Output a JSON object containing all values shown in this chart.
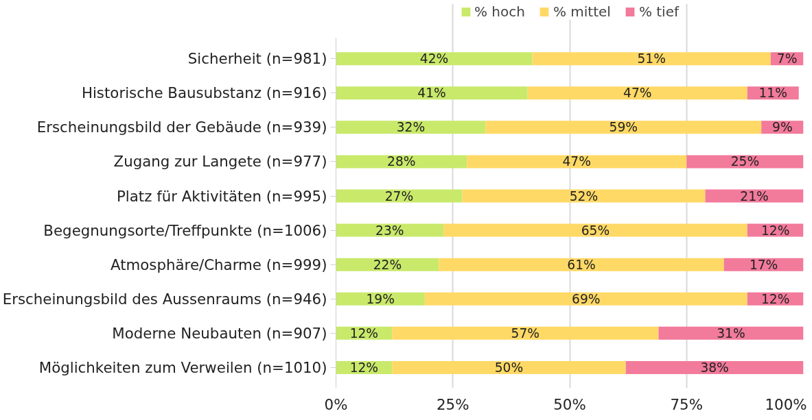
{
  "chart_data": {
    "type": "bar",
    "orientation": "horizontal",
    "stacked": true,
    "categories": [
      "Sicherheit (n=981)",
      "Historische Bausubstanz (n=916)",
      "Erscheinungsbild der Gebäude (n=939)",
      "Zugang zur Langete (n=977)",
      "Platz für Aktivitäten (n=995)",
      "Begegnungsorte/Treffpunkte (n=1006)",
      "Atmosphäre/Charme (n=999)",
      "Erscheinungsbild des Aussenraums (n=946)",
      "Moderne Neubauten (n=907)",
      "Möglichkeiten zum Verweilen (n=1010)"
    ],
    "series": [
      {
        "name": "% hoch",
        "color": "#c9e96b",
        "values": [
          42,
          41,
          32,
          28,
          27,
          23,
          22,
          19,
          12,
          12
        ],
        "value_labels": [
          "42%",
          "41%",
          "32%",
          "28%",
          "27%",
          "23%",
          "22%",
          "19%",
          "12%",
          "12%"
        ]
      },
      {
        "name": "% mittel",
        "color": "#ffd966",
        "values": [
          51,
          47,
          59,
          47,
          52,
          65,
          61,
          69,
          57,
          50
        ],
        "value_labels": [
          "51%",
          "47%",
          "59%",
          "47%",
          "52%",
          "65%",
          "61%",
          "69%",
          "57%",
          "50%"
        ]
      },
      {
        "name": "% tief",
        "color": "#f27a9b",
        "values": [
          7,
          11,
          9,
          25,
          21,
          12,
          17,
          12,
          31,
          38
        ],
        "value_labels": [
          "7%",
          "11%",
          "9%",
          "25%",
          "21%",
          "12%",
          "17%",
          "12%",
          "31%",
          "38%"
        ]
      }
    ],
    "xlim": [
      0,
      100
    ],
    "xticks": [
      {
        "value": 0,
        "label": "0%"
      },
      {
        "value": 25,
        "label": "25%"
      },
      {
        "value": 50,
        "label": "50%"
      },
      {
        "value": 75,
        "label": "75%"
      },
      {
        "value": 100,
        "label": "100%"
      }
    ],
    "grid": "x",
    "legend": "top"
  }
}
